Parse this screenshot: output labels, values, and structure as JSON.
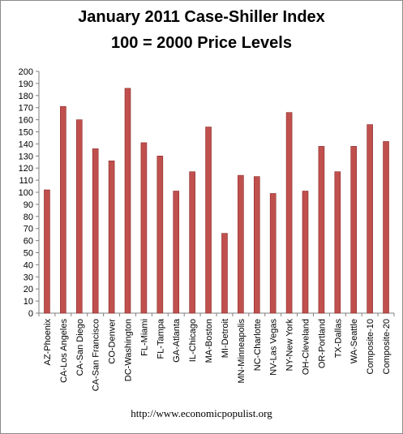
{
  "page": {
    "title_line1": "January 2011 Case-Shiller Index",
    "title_line2": "100 = 2000 Price Levels",
    "source": "http://www.economicpopulist.org"
  },
  "chart_data": {
    "type": "bar",
    "title": "January 2011 Case-Shiller Index",
    "subtitle": "100 = 2000 Price Levels",
    "xlabel": "",
    "ylabel": "",
    "ylim": [
      0,
      200
    ],
    "ytick_step": 10,
    "grid": false,
    "legend": "none",
    "bar_color": "#c0504d",
    "bar_edge_color": "#8b2a28",
    "categories": [
      "AZ-Phoenix",
      "CA-Los Angeles",
      "CA-San Diego",
      "CA-San Francisco",
      "CO-Denver",
      "DC-Washington",
      "FL-Miami",
      "FL-Tampa",
      "GA-Atlanta",
      "IL-Chicago",
      "MA-Boston",
      "MI-Detroit",
      "MN-Minneapolis",
      "NC-Charlotte",
      "NV-Las Vegas",
      "NY-New York",
      "OH-Cleveland",
      "OR-Portland",
      "TX-Dallas",
      "WA-Seattle",
      "Composite-10",
      "Composite-20"
    ],
    "values": [
      102,
      171,
      160,
      136,
      126,
      186,
      141,
      130,
      101,
      117,
      154,
      66,
      114,
      113,
      99,
      166,
      101,
      138,
      117,
      138,
      156,
      142
    ]
  }
}
